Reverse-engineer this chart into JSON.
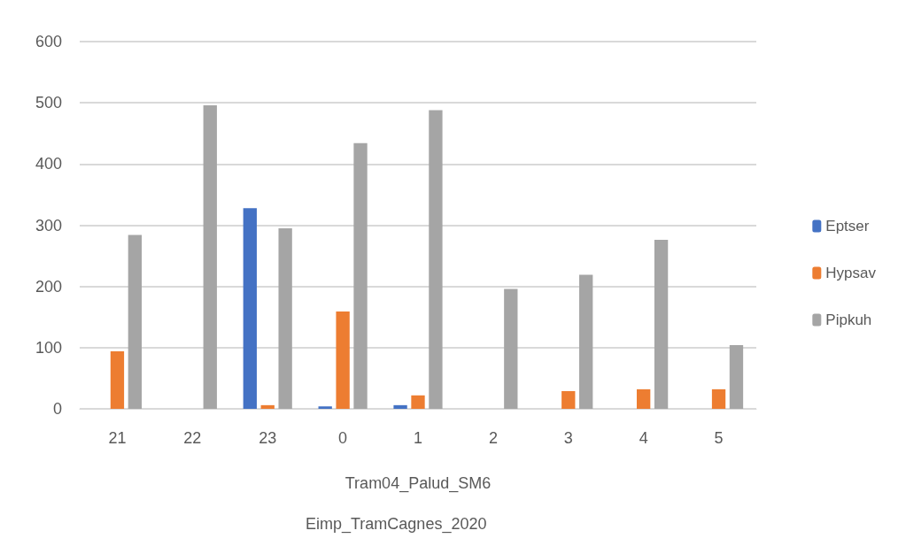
{
  "chart_data": {
    "type": "bar",
    "categories": [
      "21",
      "22",
      "23",
      "0",
      "1",
      "2",
      "3",
      "4",
      "5"
    ],
    "xlabel": "Tram04_Palud_SM6",
    "annotations": [
      "Eimp_TramCagnes_2020"
    ],
    "series": [
      {
        "name": "Eptser",
        "color": "#4472c4",
        "values": [
          null,
          null,
          328,
          4,
          6,
          null,
          null,
          null,
          null
        ]
      },
      {
        "name": "Hypsav",
        "color": "#ed7d31",
        "values": [
          94,
          null,
          6,
          159,
          22,
          null,
          29,
          32,
          32
        ]
      },
      {
        "name": "Pipkuh",
        "color": "#a5a5a5",
        "values": [
          284,
          496,
          295,
          434,
          488,
          196,
          219,
          276,
          104
        ]
      }
    ],
    "ylim": [
      0,
      600
    ],
    "yticks": [
      0,
      100,
      200,
      300,
      400,
      500,
      600
    ],
    "grid": "y",
    "legend": "right"
  }
}
